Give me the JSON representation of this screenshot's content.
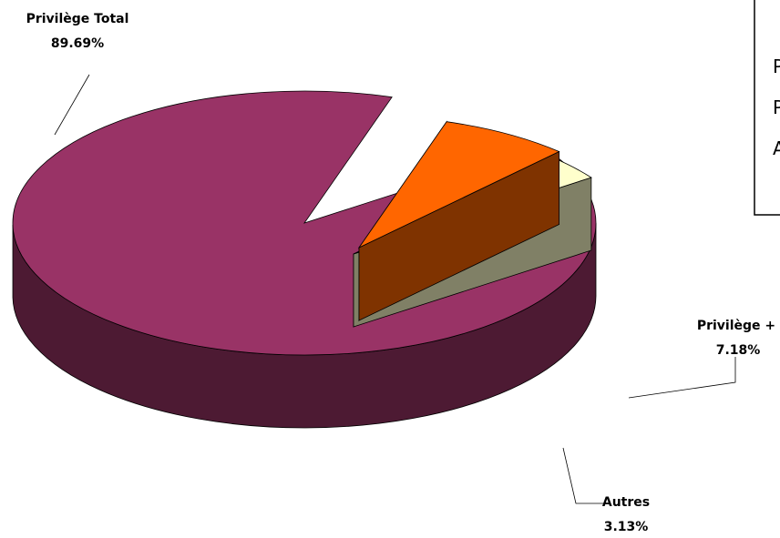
{
  "chart_data": {
    "type": "pie",
    "title": "",
    "style": "3d-exploded",
    "slices": [
      {
        "label": "Privilège Total",
        "value": 89.69,
        "display": "89.69%",
        "color": "#993366",
        "side_color": "#4d1a33"
      },
      {
        "label": "Privilège +",
        "value": 7.18,
        "display": "7.18%",
        "color": "#ff6600",
        "side_color": "#7f3300"
      },
      {
        "label": "Autres",
        "value": 3.13,
        "display": "3.13%",
        "color": "#ffffcc",
        "side_color": "#808066"
      }
    ],
    "legend": {
      "placement": "top-right",
      "entries": [
        "P",
        "P",
        "A"
      ]
    }
  }
}
